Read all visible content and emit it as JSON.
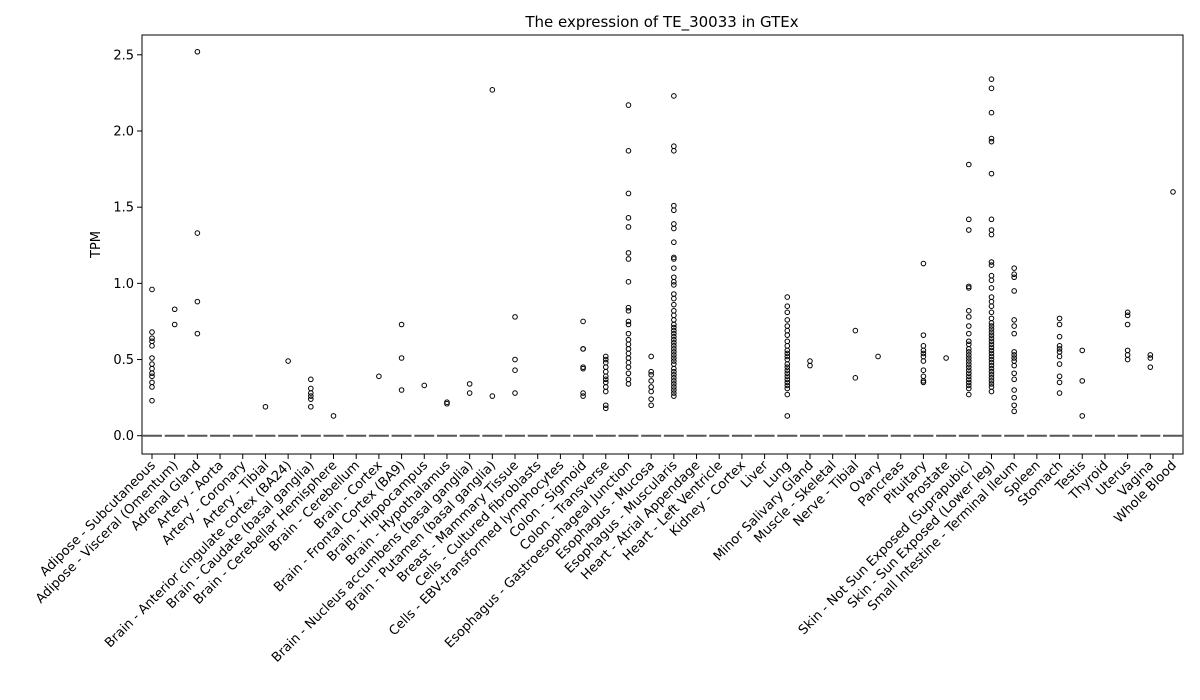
{
  "chart_data": {
    "type": "scatter",
    "title": "The expression of TE_30033 in GTEx",
    "xlabel": "",
    "ylabel": "TPM",
    "ylim": [
      -0.12,
      2.63
    ],
    "yticks": [
      "0.0",
      "0.5",
      "1.0",
      "1.5",
      "2.0",
      "2.5"
    ],
    "ytick_values": [
      0.0,
      0.5,
      1.0,
      1.5,
      2.0,
      2.5
    ],
    "grid": false,
    "median_marker": "dash",
    "categories": [
      "Adipose - Subcutaneous",
      "Adipose - Visceral (Omentum)",
      "Adrenal Gland",
      "Artery - Aorta",
      "Artery - Coronary",
      "Artery - Tibial",
      "Brain - Anterior cingulate cortex (BA24)",
      "Brain - Caudate (basal ganglia)",
      "Brain - Cerebellar Hemisphere",
      "Brain - Cerebellum",
      "Brain - Cortex",
      "Brain - Frontal Cortex (BA9)",
      "Brain - Hippocampus",
      "Brain - Hypothalamus",
      "Brain - Nucleus accumbens (basal ganglia)",
      "Brain - Putamen (basal ganglia)",
      "Breast - Mammary Tissue",
      "Cells - Cultured fibroblasts",
      "Cells - EBV-transformed lymphocytes",
      "Colon - Sigmoid",
      "Colon - Transverse",
      "Esophagus - Gastroesophageal Junction",
      "Esophagus - Mucosa",
      "Esophagus - Muscularis",
      "Heart - Atrial Appendage",
      "Heart - Left Ventricle",
      "Kidney - Cortex",
      "Liver",
      "Lung",
      "Minor Salivary Gland",
      "Muscle - Skeletal",
      "Nerve - Tibial",
      "Ovary",
      "Pancreas",
      "Pituitary",
      "Prostate",
      "Skin - Not Sun Exposed (Suprapubic)",
      "Skin - Sun Exposed (Lower leg)",
      "Small Intestine - Terminal Ileum",
      "Spleen",
      "Stomach",
      "Testis",
      "Thyroid",
      "Uterus",
      "Vagina",
      "Whole Blood"
    ],
    "medians": [
      0,
      0,
      0,
      0,
      0,
      0,
      0,
      0,
      0,
      0,
      0,
      0,
      0,
      0,
      0,
      0,
      0,
      0,
      0,
      0,
      0,
      0,
      0,
      0,
      0,
      0,
      0,
      0,
      0,
      0,
      0,
      0,
      0,
      0,
      0,
      0,
      0,
      0,
      0,
      0,
      0,
      0,
      0,
      0,
      0,
      0
    ],
    "outliers": [
      [
        0.96,
        0.68,
        0.64,
        0.62,
        0.59,
        0.51,
        0.47,
        0.44,
        0.41,
        0.39,
        0.35,
        0.32,
        0.23
      ],
      [
        0.83,
        0.73
      ],
      [
        2.52,
        1.33,
        0.88,
        0.67
      ],
      [],
      [],
      [
        0.19
      ],
      [
        0.49
      ],
      [
        0.37,
        0.31,
        0.28,
        0.26,
        0.24,
        0.19
      ],
      [
        0.13
      ],
      [],
      [
        0.39
      ],
      [
        0.73,
        0.51,
        0.3
      ],
      [
        0.33
      ],
      [
        0.22,
        0.21
      ],
      [
        0.34,
        0.28
      ],
      [
        2.27,
        0.26
      ],
      [
        0.78,
        0.5,
        0.43,
        0.28
      ],
      [],
      [],
      [
        0.75,
        0.57,
        0.57,
        0.45,
        0.44,
        0.28,
        0.26
      ],
      [
        0.52,
        0.5,
        0.48,
        0.45,
        0.42,
        0.39,
        0.37,
        0.35,
        0.32,
        0.29,
        0.2,
        0.18
      ],
      [
        2.17,
        1.87,
        1.59,
        1.43,
        1.37,
        1.2,
        1.16,
        1.01,
        0.84,
        0.82,
        0.75,
        0.73,
        0.67,
        0.63,
        0.6,
        0.57,
        0.54,
        0.51,
        0.48,
        0.45,
        0.41,
        0.37,
        0.34
      ],
      [
        0.52,
        0.42,
        0.4,
        0.36,
        0.32,
        0.29,
        0.24,
        0.2
      ],
      [
        2.23,
        1.9,
        1.87,
        1.51,
        1.48,
        1.39,
        1.36,
        1.27,
        1.17,
        1.16,
        1.1,
        1.04,
        1.01,
        0.99,
        0.93,
        0.9,
        0.86,
        0.82,
        0.79,
        0.76,
        0.73,
        0.71,
        0.69,
        0.67,
        0.65,
        0.63,
        0.61,
        0.59,
        0.57,
        0.55,
        0.53,
        0.51,
        0.49,
        0.47,
        0.44,
        0.42,
        0.4,
        0.38,
        0.36,
        0.34,
        0.32,
        0.3,
        0.28,
        0.26
      ],
      [],
      [],
      [],
      [],
      [
        0.91,
        0.85,
        0.81,
        0.76,
        0.72,
        0.69,
        0.66,
        0.62,
        0.59,
        0.56,
        0.54,
        0.52,
        0.5,
        0.47,
        0.45,
        0.43,
        0.41,
        0.39,
        0.37,
        0.35,
        0.33,
        0.31,
        0.27,
        0.13
      ],
      [
        0.49,
        0.46
      ],
      [],
      [
        0.69,
        0.38
      ],
      [
        0.52
      ],
      [],
      [
        1.13,
        0.66,
        0.59,
        0.56,
        0.54,
        0.52,
        0.49,
        0.43,
        0.39,
        0.36,
        0.35
      ],
      [
        0.51
      ],
      [
        1.78,
        1.42,
        1.35,
        0.98,
        0.97,
        0.82,
        0.78,
        0.72,
        0.67,
        0.62,
        0.6,
        0.57,
        0.55,
        0.53,
        0.51,
        0.49,
        0.47,
        0.45,
        0.43,
        0.41,
        0.39,
        0.37,
        0.35,
        0.33,
        0.31,
        0.27
      ],
      [
        2.34,
        2.28,
        2.12,
        1.95,
        1.93,
        1.72,
        1.42,
        1.35,
        1.32,
        1.14,
        1.12,
        1.05,
        1.02,
        0.97,
        0.91,
        0.88,
        0.85,
        0.81,
        0.77,
        0.74,
        0.72,
        0.7,
        0.68,
        0.66,
        0.64,
        0.62,
        0.6,
        0.58,
        0.56,
        0.54,
        0.52,
        0.5,
        0.48,
        0.46,
        0.44,
        0.42,
        0.4,
        0.38,
        0.36,
        0.34,
        0.32,
        0.29
      ],
      [
        1.1,
        1.06,
        1.04,
        0.95,
        0.76,
        0.72,
        0.67,
        0.55,
        0.53,
        0.51,
        0.49,
        0.46,
        0.41,
        0.37,
        0.3,
        0.25,
        0.2,
        0.16
      ],
      [],
      [
        0.77,
        0.73,
        0.65,
        0.59,
        0.57,
        0.55,
        0.52,
        0.47,
        0.39,
        0.35,
        0.28
      ],
      [
        0.56,
        0.36,
        0.13
      ],
      [],
      [
        0.81,
        0.79,
        0.73,
        0.56,
        0.53,
        0.5
      ],
      [
        0.53,
        0.51,
        0.45
      ],
      [
        1.6
      ]
    ]
  }
}
